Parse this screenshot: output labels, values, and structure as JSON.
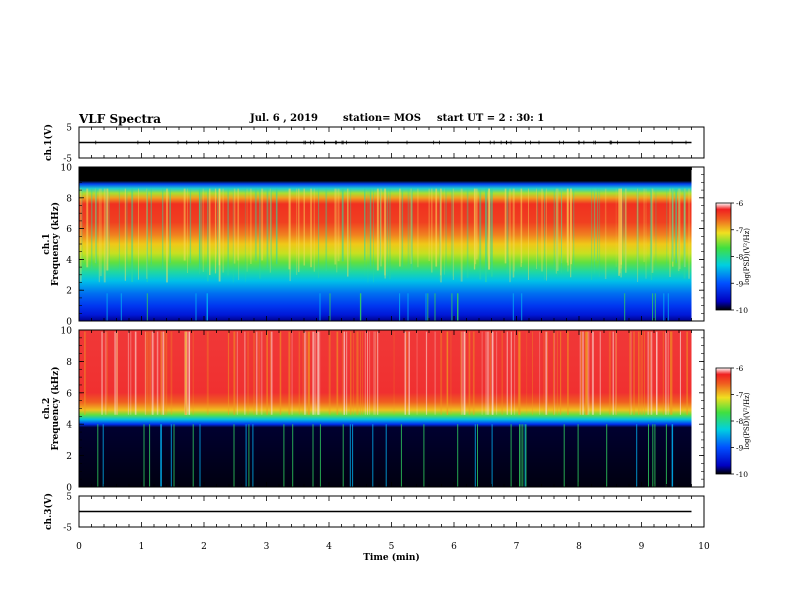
{
  "header": {
    "title": "VLF Spectra",
    "date": "Jul. 6 , 2019",
    "station": "station= MOS",
    "start": "start UT = 2 : 30: 1"
  },
  "chart_data": {
    "type": "heatmap",
    "xlabel": "Time (min)",
    "xlim": [
      0,
      10
    ],
    "x_ticks": [
      "0",
      "1",
      "2",
      "3",
      "4",
      "5",
      "6",
      "7",
      "8",
      "9",
      "10"
    ],
    "panels": [
      {
        "type": "line",
        "ylabel": "ch.1(V)",
        "ylim": [
          -5,
          5
        ],
        "y_ticks": [
          "5",
          "-5"
        ],
        "value": 0,
        "x_end": 9.8
      },
      {
        "type": "heatmap",
        "ylabel_top": "ch.1",
        "ylabel": "Frequency (kHz)",
        "ylim": [
          0,
          10
        ],
        "y_ticks": [
          "0",
          "2",
          "4",
          "6",
          "8",
          "10"
        ],
        "x_end": 9.8,
        "profile": [
          [
            0.0,
            "#00008a"
          ],
          [
            0.4,
            "#0018d8"
          ],
          [
            1.0,
            "#0038f0"
          ],
          [
            1.8,
            "#0070f0"
          ],
          [
            2.6,
            "#00c0e8"
          ],
          [
            3.2,
            "#20d8a0"
          ],
          [
            3.8,
            "#60e040"
          ],
          [
            4.4,
            "#c8e020"
          ],
          [
            5.0,
            "#f0c818"
          ],
          [
            5.6,
            "#f08020"
          ],
          [
            6.4,
            "#f04020"
          ],
          [
            7.6,
            "#f03020"
          ],
          [
            8.0,
            "#f0a020"
          ],
          [
            8.3,
            "#a8e030"
          ],
          [
            8.6,
            "#20d0d0"
          ],
          [
            8.9,
            "#0040f0"
          ],
          [
            9.1,
            "#000000"
          ],
          [
            10.0,
            "#000000"
          ]
        ],
        "colorbar": {
          "label": "log(PSD)(V²/Hz)",
          "ticks": [
            "-6",
            "-7",
            "-8",
            "-9",
            "-10"
          ],
          "range": [
            -10,
            -6
          ]
        }
      },
      {
        "type": "heatmap",
        "ylabel_top": "ch.2",
        "ylabel": "Frequency (kHz)",
        "ylim": [
          0,
          10
        ],
        "y_ticks": [
          "0",
          "2",
          "4",
          "6",
          "8",
          "10"
        ],
        "x_end": 9.8,
        "profile": [
          [
            0.0,
            "#000010"
          ],
          [
            3.8,
            "#000030"
          ],
          [
            4.0,
            "#0030f0"
          ],
          [
            4.3,
            "#00c0e0"
          ],
          [
            4.6,
            "#60e040"
          ],
          [
            4.9,
            "#f0c020"
          ],
          [
            5.4,
            "#f06020"
          ],
          [
            6.0,
            "#f03030"
          ],
          [
            10.0,
            "#f03838"
          ]
        ],
        "colorbar": {
          "label": "log(PSD)(V²/Hz)",
          "ticks": [
            "-6",
            "-7",
            "-8",
            "-9",
            "-10"
          ],
          "range": [
            -10,
            -6
          ]
        }
      },
      {
        "type": "line",
        "ylabel": "ch.3(V)",
        "ylim": [
          -5,
          5
        ],
        "y_ticks": [
          "5",
          "-5"
        ],
        "value": 0,
        "x_end": 9.8
      }
    ]
  }
}
